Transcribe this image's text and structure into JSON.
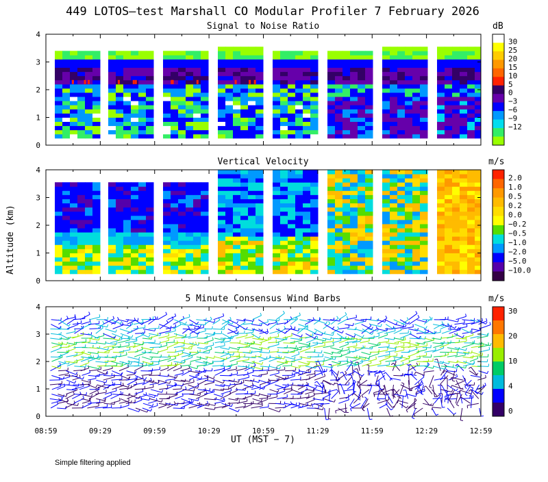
{
  "title": "449 LOTOS—test Marshall CO Modular Profiler  7 February 2026",
  "footer_note": "Simple filtering applied",
  "xlabel": "UT  (MST − 7)",
  "ylabel": "Altitude (km)",
  "time_ticks": [
    "08:59",
    "09:29",
    "09:59",
    "10:29",
    "10:59",
    "11:29",
    "11:59",
    "12:29",
    "12:59"
  ],
  "altitude_ticks": [
    "0",
    "1",
    "2",
    "3",
    "4"
  ],
  "chart_data": [
    {
      "type": "heatmap",
      "title": "Signal to Noise Ratio",
      "x": [
        "08:59",
        "09:29",
        "09:59",
        "10:29",
        "10:59",
        "11:29",
        "11:59",
        "12:29",
        "12:59"
      ],
      "ylim": [
        0,
        4
      ],
      "unit": "dB",
      "colorbar_ticks": [
        "30",
        "25",
        "20",
        "15",
        "10",
        "5",
        "0",
        "−3",
        "−6",
        "−9",
        "−12"
      ],
      "colorbar_colors": [
        "#ffffff",
        "#ffff00",
        "#ffcc00",
        "#ff9900",
        "#ff6600",
        "#ff2200",
        "#330066",
        "#6600aa",
        "#0000ff",
        "#0099ff",
        "#00ddee",
        "#33ee66",
        "#99ff00"
      ]
    },
    {
      "type": "heatmap",
      "title": "Vertical Velocity",
      "x": [
        "08:59",
        "09:29",
        "09:59",
        "10:29",
        "10:59",
        "11:29",
        "11:59",
        "12:29",
        "12:59"
      ],
      "ylim": [
        0,
        4
      ],
      "unit": "m/s",
      "colorbar_ticks": [
        "2.0",
        "1.0",
        "0.5",
        "0.2",
        "0.0",
        "−0.2",
        "−0.5",
        "−1.0",
        "−2.0",
        "−5.0",
        "−10.0"
      ],
      "colorbar_colors": [
        "#ff2200",
        "#ff6600",
        "#ff9900",
        "#ffbb00",
        "#ffdd00",
        "#ffff00",
        "#55dd00",
        "#00dddd",
        "#0099ff",
        "#0000ff",
        "#5500aa",
        "#330044"
      ]
    },
    {
      "type": "scatter",
      "title": "5 Minute Consensus Wind Barbs",
      "x": [
        "08:59",
        "09:29",
        "09:59",
        "10:29",
        "10:59",
        "11:29",
        "11:59",
        "12:29",
        "12:59"
      ],
      "ylim": [
        0,
        4
      ],
      "unit": "m/s",
      "colorbar_ticks": [
        "30",
        "20",
        "10",
        "4",
        "0"
      ],
      "colorbar_colors": [
        "#ff2200",
        "#ff7700",
        "#ffbb00",
        "#99ee00",
        "#00cc66",
        "#00bbdd",
        "#0000ff",
        "#330066"
      ]
    }
  ]
}
